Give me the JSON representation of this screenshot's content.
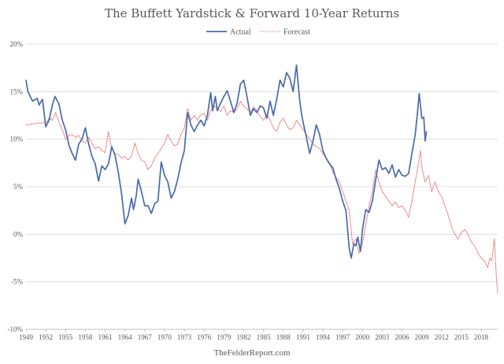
{
  "chart_data": {
    "type": "line",
    "title": "The Buffett Yardstick & Forward 10-Year Returns",
    "source": "TheFelderReport.com",
    "legend_position": "top-center",
    "grid": true,
    "xlim": [
      1949,
      2020.5
    ],
    "ylim": [
      -10,
      20
    ],
    "y_ticks": [
      -10,
      -5,
      0,
      5,
      10,
      15,
      20
    ],
    "y_tick_labels": [
      "-10%",
      "-5%",
      "0%",
      "5%",
      "10%",
      "15%",
      "20%"
    ],
    "x_ticks": [
      1949,
      1952,
      1955,
      1958,
      1961,
      1964,
      1967,
      1970,
      1973,
      1976,
      1979,
      1982,
      1985,
      1988,
      1991,
      1994,
      1997,
      2000,
      2003,
      2006,
      2009,
      2012,
      2015,
      2018
    ],
    "x_tick_labels": [
      "1949",
      "1952",
      "1955",
      "1958",
      "1961",
      "1964",
      "1967",
      "1970",
      "1973",
      "1976",
      "1979",
      "1982",
      "1985",
      "1988",
      "1991",
      "1994",
      "1997",
      "2000",
      "2003",
      "2006",
      "2009",
      "2012",
      "2015",
      "2018"
    ],
    "series": [
      {
        "name": "Actual",
        "color": "#4a6aab",
        "style": "solid",
        "points": [
          [
            1949.0,
            16.2
          ],
          [
            1949.3,
            15.0
          ],
          [
            1950.0,
            14.0
          ],
          [
            1950.7,
            14.3
          ],
          [
            1951.0,
            13.6
          ],
          [
            1951.5,
            14.2
          ],
          [
            1952.0,
            11.3
          ],
          [
            1952.5,
            12.0
          ],
          [
            1953.0,
            13.6
          ],
          [
            1953.4,
            14.5
          ],
          [
            1954.0,
            13.7
          ],
          [
            1954.5,
            12.0
          ],
          [
            1955.0,
            11.0
          ],
          [
            1955.5,
            9.4
          ],
          [
            1956.0,
            8.5
          ],
          [
            1956.5,
            7.8
          ],
          [
            1957.0,
            9.5
          ],
          [
            1957.5,
            10.0
          ],
          [
            1958.0,
            11.2
          ],
          [
            1958.5,
            9.5
          ],
          [
            1959.0,
            8.2
          ],
          [
            1959.5,
            7.4
          ],
          [
            1960.0,
            5.6
          ],
          [
            1960.5,
            7.2
          ],
          [
            1961.0,
            6.8
          ],
          [
            1961.5,
            7.4
          ],
          [
            1962.0,
            9.2
          ],
          [
            1962.5,
            8.3
          ],
          [
            1963.0,
            6.5
          ],
          [
            1963.5,
            4.2
          ],
          [
            1964.0,
            1.1
          ],
          [
            1964.5,
            2.0
          ],
          [
            1965.0,
            3.8
          ],
          [
            1965.3,
            2.6
          ],
          [
            1965.7,
            4.0
          ],
          [
            1966.0,
            5.8
          ],
          [
            1966.5,
            4.5
          ],
          [
            1967.0,
            3.0
          ],
          [
            1967.5,
            3.0
          ],
          [
            1968.0,
            2.2
          ],
          [
            1968.5,
            3.2
          ],
          [
            1969.0,
            3.5
          ],
          [
            1969.5,
            7.6
          ],
          [
            1970.0,
            6.2
          ],
          [
            1970.5,
            5.5
          ],
          [
            1971.0,
            3.8
          ],
          [
            1971.5,
            4.5
          ],
          [
            1972.0,
            5.8
          ],
          [
            1972.5,
            7.5
          ],
          [
            1973.0,
            8.8
          ],
          [
            1973.5,
            12.8
          ],
          [
            1974.0,
            11.5
          ],
          [
            1974.5,
            10.8
          ],
          [
            1975.0,
            11.5
          ],
          [
            1975.5,
            12.0
          ],
          [
            1976.0,
            11.4
          ],
          [
            1976.5,
            12.5
          ],
          [
            1977.0,
            14.9
          ],
          [
            1977.3,
            13.0
          ],
          [
            1977.7,
            14.5
          ],
          [
            1978.0,
            13.0
          ],
          [
            1978.5,
            13.8
          ],
          [
            1979.0,
            14.5
          ],
          [
            1979.5,
            15.1
          ],
          [
            1980.0,
            14.0
          ],
          [
            1980.5,
            12.8
          ],
          [
            1981.0,
            13.8
          ],
          [
            1981.5,
            15.8
          ],
          [
            1982.0,
            16.2
          ],
          [
            1982.5,
            14.5
          ],
          [
            1983.0,
            12.5
          ],
          [
            1983.5,
            13.2
          ],
          [
            1984.0,
            12.8
          ],
          [
            1984.5,
            13.5
          ],
          [
            1985.0,
            13.3
          ],
          [
            1985.5,
            12.2
          ],
          [
            1986.0,
            14.0
          ],
          [
            1986.5,
            12.5
          ],
          [
            1987.0,
            14.2
          ],
          [
            1987.5,
            16.2
          ],
          [
            1988.0,
            15.5
          ],
          [
            1988.5,
            17.0
          ],
          [
            1989.0,
            16.4
          ],
          [
            1989.5,
            15.0
          ],
          [
            1990.0,
            17.8
          ],
          [
            1990.5,
            14.0
          ],
          [
            1990.8,
            12.5
          ],
          [
            1991.0,
            11.8
          ],
          [
            1991.5,
            10.2
          ],
          [
            1992.0,
            8.5
          ],
          [
            1992.5,
            9.8
          ],
          [
            1993.0,
            11.5
          ],
          [
            1993.5,
            10.5
          ],
          [
            1994.0,
            8.8
          ],
          [
            1994.5,
            8.0
          ],
          [
            1995.0,
            7.4
          ],
          [
            1995.5,
            7.0
          ],
          [
            1996.0,
            5.8
          ],
          [
            1996.5,
            4.8
          ],
          [
            1997.0,
            3.5
          ],
          [
            1997.5,
            2.5
          ],
          [
            1998.0,
            -1.5
          ],
          [
            1998.3,
            -2.5
          ],
          [
            1998.7,
            -1.0
          ],
          [
            1999.0,
            -1.2
          ],
          [
            1999.3,
            -0.3
          ],
          [
            1999.7,
            -1.8
          ],
          [
            2000.0,
            0.5
          ],
          [
            2000.5,
            2.6
          ],
          [
            2001.0,
            2.3
          ],
          [
            2001.5,
            3.5
          ],
          [
            2002.0,
            5.7
          ],
          [
            2002.5,
            7.8
          ],
          [
            2003.0,
            6.8
          ],
          [
            2003.5,
            7.0
          ],
          [
            2004.0,
            6.4
          ],
          [
            2004.5,
            7.3
          ],
          [
            2005.0,
            6.0
          ],
          [
            2005.5,
            6.8
          ],
          [
            2006.0,
            6.2
          ],
          [
            2006.5,
            6.1
          ],
          [
            2007.0,
            6.4
          ],
          [
            2007.5,
            8.5
          ],
          [
            2008.0,
            10.5
          ],
          [
            2008.3,
            12.5
          ],
          [
            2008.6,
            14.8
          ],
          [
            2009.0,
            12.2
          ],
          [
            2009.3,
            12.3
          ],
          [
            2009.5,
            9.8
          ],
          [
            2009.7,
            10.8
          ]
        ]
      },
      {
        "name": "Forecast",
        "color": "#e8787a",
        "style": "dotted",
        "points": [
          [
            1949.0,
            11.5
          ],
          [
            1950.0,
            11.6
          ],
          [
            1951.0,
            11.7
          ],
          [
            1952.0,
            11.7
          ],
          [
            1952.5,
            12.2
          ],
          [
            1953.0,
            12.0
          ],
          [
            1953.5,
            12.8
          ],
          [
            1954.0,
            11.8
          ],
          [
            1954.5,
            11.0
          ],
          [
            1955.0,
            10.0
          ],
          [
            1955.5,
            10.4
          ],
          [
            1956.0,
            10.5
          ],
          [
            1956.5,
            10.2
          ],
          [
            1957.0,
            10.4
          ],
          [
            1957.5,
            9.8
          ],
          [
            1958.0,
            9.6
          ],
          [
            1958.5,
            10.2
          ],
          [
            1959.0,
            9.6
          ],
          [
            1959.5,
            9.0
          ],
          [
            1960.0,
            9.2
          ],
          [
            1960.5,
            8.8
          ],
          [
            1961.0,
            8.6
          ],
          [
            1961.5,
            10.8
          ],
          [
            1962.0,
            9.0
          ],
          [
            1962.5,
            8.5
          ],
          [
            1963.0,
            8.4
          ],
          [
            1963.5,
            8.0
          ],
          [
            1964.0,
            8.2
          ],
          [
            1964.5,
            7.8
          ],
          [
            1965.0,
            8.2
          ],
          [
            1965.5,
            9.6
          ],
          [
            1966.0,
            8.5
          ],
          [
            1966.5,
            7.8
          ],
          [
            1967.0,
            7.6
          ],
          [
            1967.5,
            6.8
          ],
          [
            1968.0,
            7.2
          ],
          [
            1968.5,
            8.0
          ],
          [
            1969.0,
            8.5
          ],
          [
            1969.5,
            9.0
          ],
          [
            1970.0,
            9.6
          ],
          [
            1970.5,
            10.5
          ],
          [
            1971.0,
            9.8
          ],
          [
            1971.5,
            9.3
          ],
          [
            1972.0,
            9.5
          ],
          [
            1972.5,
            10.5
          ],
          [
            1973.0,
            11.2
          ],
          [
            1973.5,
            13.2
          ],
          [
            1974.0,
            12.0
          ],
          [
            1974.5,
            12.5
          ],
          [
            1975.0,
            12.0
          ],
          [
            1975.5,
            12.6
          ],
          [
            1976.0,
            12.7
          ],
          [
            1976.5,
            12.0
          ],
          [
            1977.0,
            13.0
          ],
          [
            1977.5,
            13.5
          ],
          [
            1978.0,
            13.2
          ],
          [
            1978.5,
            12.9
          ],
          [
            1979.0,
            13.5
          ],
          [
            1979.5,
            12.5
          ],
          [
            1980.0,
            13.0
          ],
          [
            1980.5,
            12.8
          ],
          [
            1981.0,
            13.2
          ],
          [
            1981.5,
            14.0
          ],
          [
            1982.0,
            13.5
          ],
          [
            1982.5,
            13.2
          ],
          [
            1983.0,
            12.8
          ],
          [
            1983.5,
            13.4
          ],
          [
            1984.0,
            13.0
          ],
          [
            1984.5,
            12.4
          ],
          [
            1985.0,
            12.0
          ],
          [
            1985.5,
            12.6
          ],
          [
            1986.0,
            12.0
          ],
          [
            1986.5,
            11.2
          ],
          [
            1987.0,
            10.8
          ],
          [
            1987.5,
            11.8
          ],
          [
            1988.0,
            12.2
          ],
          [
            1988.5,
            11.5
          ],
          [
            1989.0,
            11.0
          ],
          [
            1989.5,
            11.2
          ],
          [
            1990.0,
            12.0
          ],
          [
            1990.5,
            11.5
          ],
          [
            1991.0,
            11.0
          ],
          [
            1991.5,
            10.5
          ],
          [
            1992.0,
            10.0
          ],
          [
            1992.5,
            9.5
          ],
          [
            1993.0,
            9.2
          ],
          [
            1993.5,
            9.0
          ],
          [
            1994.0,
            8.5
          ],
          [
            1994.5,
            8.0
          ],
          [
            1995.0,
            7.5
          ],
          [
            1995.5,
            6.5
          ],
          [
            1996.0,
            6.0
          ],
          [
            1996.5,
            5.5
          ],
          [
            1997.0,
            4.5
          ],
          [
            1997.5,
            3.5
          ],
          [
            1998.0,
            2.5
          ],
          [
            1998.5,
            -1.0
          ],
          [
            1999.0,
            -0.5
          ],
          [
            1999.5,
            -2.0
          ],
          [
            2000.0,
            -1.0
          ],
          [
            2000.5,
            1.0
          ],
          [
            2001.0,
            3.0
          ],
          [
            2001.5,
            4.5
          ],
          [
            2002.0,
            6.8
          ],
          [
            2002.5,
            5.5
          ],
          [
            2003.0,
            4.5
          ],
          [
            2003.5,
            4.0
          ],
          [
            2004.0,
            3.5
          ],
          [
            2004.5,
            3.0
          ],
          [
            2005.0,
            3.4
          ],
          [
            2005.5,
            2.8
          ],
          [
            2006.0,
            3.0
          ],
          [
            2006.5,
            2.5
          ],
          [
            2007.0,
            1.8
          ],
          [
            2007.5,
            3.5
          ],
          [
            2008.0,
            5.5
          ],
          [
            2008.5,
            7.5
          ],
          [
            2008.8,
            8.8
          ],
          [
            2009.0,
            7.0
          ],
          [
            2009.5,
            5.5
          ],
          [
            2010.0,
            6.2
          ],
          [
            2010.5,
            4.5
          ],
          [
            2011.0,
            5.5
          ],
          [
            2011.5,
            4.5
          ],
          [
            2012.0,
            4.0
          ],
          [
            2012.5,
            3.0
          ],
          [
            2013.0,
            2.0
          ],
          [
            2013.5,
            0.8
          ],
          [
            2014.0,
            0.0
          ],
          [
            2014.5,
            -0.5
          ],
          [
            2015.0,
            0.2
          ],
          [
            2015.5,
            0.5
          ],
          [
            2016.0,
            0.0
          ],
          [
            2016.5,
            -0.8
          ],
          [
            2017.0,
            -1.2
          ],
          [
            2017.5,
            -2.0
          ],
          [
            2018.0,
            -2.5
          ],
          [
            2018.5,
            -2.8
          ],
          [
            2019.0,
            -3.5
          ],
          [
            2019.3,
            -2.5
          ],
          [
            2019.6,
            -2.8
          ],
          [
            2020.0,
            -0.5
          ],
          [
            2020.3,
            -4.5
          ],
          [
            2020.5,
            -6.2
          ]
        ]
      }
    ]
  }
}
